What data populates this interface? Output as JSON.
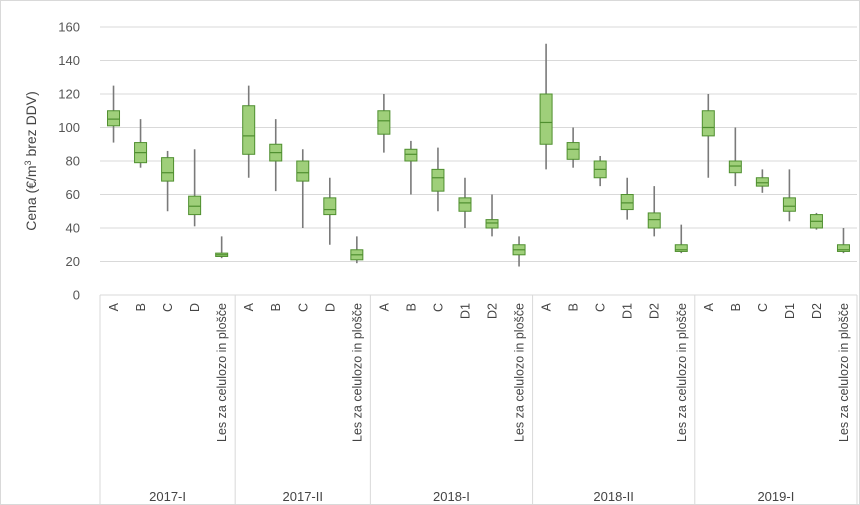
{
  "chart_data": {
    "type": "boxplot",
    "ylabel_prefix": "Cena (€/m",
    "ylabel_sup": "3",
    "ylabel_suffix": " brez DDV)",
    "ylim": [
      0,
      160
    ],
    "yticks": [
      0,
      20,
      40,
      60,
      80,
      100,
      120,
      140,
      160
    ],
    "grid": "horizontal",
    "colors": {
      "box_fill": "#9fcf7a",
      "box_stroke": "#4f8f2f",
      "whisker": "#7a7a7a",
      "grid": "#d9d9d9"
    },
    "groups": [
      {
        "name": "2017-I",
        "items": [
          {
            "label": "A",
            "min": 91,
            "q1": 101,
            "median": 105,
            "q3": 110,
            "max": 125
          },
          {
            "label": "B",
            "min": 76,
            "q1": 79,
            "median": 85,
            "q3": 91,
            "max": 105
          },
          {
            "label": "C",
            "min": 50,
            "q1": 68,
            "median": 73,
            "q3": 82,
            "max": 86
          },
          {
            "label": "D",
            "min": 41,
            "q1": 48,
            "median": 53,
            "q3": 59,
            "max": 87
          },
          {
            "label": "Les za celulozo in plošče",
            "min": 22,
            "q1": 23,
            "median": 24,
            "q3": 25,
            "max": 35
          }
        ]
      },
      {
        "name": "2017-II",
        "items": [
          {
            "label": "A",
            "min": 70,
            "q1": 84,
            "median": 95,
            "q3": 113,
            "max": 125
          },
          {
            "label": "B",
            "min": 62,
            "q1": 80,
            "median": 85,
            "q3": 90,
            "max": 105
          },
          {
            "label": "C",
            "min": 40,
            "q1": 68,
            "median": 73,
            "q3": 80,
            "max": 87
          },
          {
            "label": "D",
            "min": 30,
            "q1": 48,
            "median": 51,
            "q3": 58,
            "max": 70
          },
          {
            "label": "Les za celulozo in plošče",
            "min": 19,
            "q1": 21,
            "median": 24,
            "q3": 27,
            "max": 35
          }
        ]
      },
      {
        "name": "2018-I",
        "items": [
          {
            "label": "A",
            "min": 85,
            "q1": 96,
            "median": 104,
            "q3": 110,
            "max": 120
          },
          {
            "label": "B",
            "min": 60,
            "q1": 80,
            "median": 84,
            "q3": 87,
            "max": 92
          },
          {
            "label": "C",
            "min": 50,
            "q1": 62,
            "median": 70,
            "q3": 75,
            "max": 88
          },
          {
            "label": "D1",
            "min": 40,
            "q1": 50,
            "median": 55,
            "q3": 58,
            "max": 70
          },
          {
            "label": "D2",
            "min": 35,
            "q1": 40,
            "median": 43,
            "q3": 45,
            "max": 60
          },
          {
            "label": "Les za celulozo in plošče",
            "min": 17,
            "q1": 24,
            "median": 27,
            "q3": 30,
            "max": 35
          }
        ]
      },
      {
        "name": "2018-II",
        "items": [
          {
            "label": "A",
            "min": 75,
            "q1": 90,
            "median": 103,
            "q3": 120,
            "max": 150
          },
          {
            "label": "B",
            "min": 76,
            "q1": 81,
            "median": 87,
            "q3": 91,
            "max": 100
          },
          {
            "label": "C",
            "min": 65,
            "q1": 70,
            "median": 75,
            "q3": 80,
            "max": 83
          },
          {
            "label": "D1",
            "min": 45,
            "q1": 51,
            "median": 55,
            "q3": 60,
            "max": 70
          },
          {
            "label": "D2",
            "min": 35,
            "q1": 40,
            "median": 45,
            "q3": 49,
            "max": 65
          },
          {
            "label": "Les za celulozo in plošče",
            "min": 25,
            "q1": 26,
            "median": 27,
            "q3": 30,
            "max": 42
          }
        ]
      },
      {
        "name": "2019-I",
        "items": [
          {
            "label": "A",
            "min": 70,
            "q1": 95,
            "median": 100,
            "q3": 110,
            "max": 120
          },
          {
            "label": "B",
            "min": 65,
            "q1": 73,
            "median": 77,
            "q3": 80,
            "max": 100
          },
          {
            "label": "C",
            "min": 61,
            "q1": 65,
            "median": 67,
            "q3": 70,
            "max": 75
          },
          {
            "label": "D1",
            "min": 44,
            "q1": 50,
            "median": 53,
            "q3": 58,
            "max": 75
          },
          {
            "label": "D2",
            "min": 39,
            "q1": 40,
            "median": 44,
            "q3": 48,
            "max": 49
          },
          {
            "label": "Les za celulozo in plošče",
            "min": 25,
            "q1": 26,
            "median": 27,
            "q3": 30,
            "max": 40
          }
        ]
      }
    ]
  }
}
